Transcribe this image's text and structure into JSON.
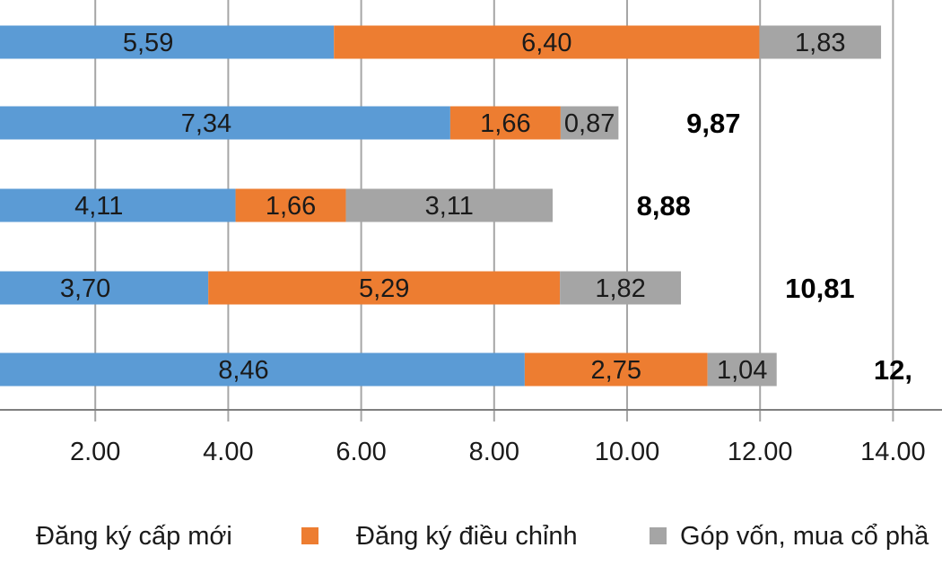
{
  "chart_data": {
    "type": "bar",
    "orientation": "horizontal",
    "stacked": true,
    "xlim": [
      0,
      14
    ],
    "ticks": [
      "2.00",
      "4.00",
      "6.00",
      "8.00",
      "10.00",
      "12.00",
      "14.00"
    ],
    "tick_values": [
      2,
      4,
      6,
      8,
      10,
      12,
      14
    ],
    "grid": "vertical",
    "legend_position": "bottom",
    "series": [
      {
        "name": "Đăng ký cấp mới",
        "color": "#5b9bd5",
        "values": [
          5.59,
          7.34,
          4.11,
          3.7,
          8.46
        ],
        "labels": [
          "5,59",
          "7,34",
          "4,11",
          "3,70",
          "8,46"
        ]
      },
      {
        "name": "Đăng ký điều chỉnh",
        "color": "#ed7d31",
        "values": [
          6.4,
          1.66,
          1.66,
          5.29,
          2.75
        ],
        "labels": [
          "6,40",
          "1,66",
          "1,66",
          "5,29",
          "2,75"
        ]
      },
      {
        "name": "Góp vốn, mua cổ phầ",
        "color": "#a5a5a5",
        "values": [
          1.83,
          0.87,
          3.11,
          1.82,
          1.04
        ],
        "labels": [
          "1,83",
          "0,87",
          "3,11",
          "1,82",
          "1,04"
        ]
      }
    ],
    "totals": [
      {
        "row": 1,
        "label": "9,87",
        "x": 11.3
      },
      {
        "row": 2,
        "label": "8,88",
        "x": 10.55
      },
      {
        "row": 3,
        "label": "10,81",
        "x": 12.9
      },
      {
        "row": 4,
        "label": "12,",
        "x": 14.0
      }
    ]
  }
}
